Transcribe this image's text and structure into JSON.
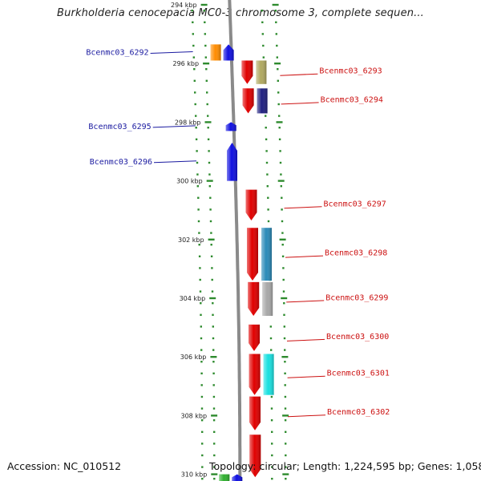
{
  "title": "Burkholderia cenocepacia MC0-3 chromosome 3, complete sequen...",
  "footer": {
    "accession": "Accession: NC_010512",
    "summary": "Topology: circular; Length: 1,224,595 bp; Genes: 1,058"
  },
  "colors": {
    "backbone": "#8a8a8a",
    "tick": "#2e8b2e",
    "dot": "#2e8b2e",
    "minus_label": "#1a1aa0",
    "plus_label": "#cc1111"
  },
  "scale": {
    "ticks": [
      {
        "kbp": 294,
        "label": "294 kbp"
      },
      {
        "kbp": 296,
        "label": "296 kbp"
      },
      {
        "kbp": 298,
        "label": "298 kbp"
      },
      {
        "kbp": 300,
        "label": "300 kbp"
      },
      {
        "kbp": 302,
        "label": "302 kbp"
      },
      {
        "kbp": 304,
        "label": "304 kbp"
      },
      {
        "kbp": 306,
        "label": "306 kbp"
      },
      {
        "kbp": 308,
        "label": "308 kbp"
      },
      {
        "kbp": 310,
        "label": "310 kbp"
      }
    ]
  },
  "genes": [
    {
      "label": "Bcenmc03_6292",
      "strand": "minus",
      "start_kbp": 295.35,
      "end_kbp": 295.9,
      "color": "#1010e0",
      "cog_color": "#ff8c00"
    },
    {
      "label": "Bcenmc03_6293",
      "strand": "plus",
      "start_kbp": 295.9,
      "end_kbp": 296.7,
      "color": "#e00000",
      "cog_color": "#b0a860"
    },
    {
      "label": "Bcenmc03_6294",
      "strand": "plus",
      "start_kbp": 296.85,
      "end_kbp": 297.7,
      "color": "#e00000",
      "cog_color": "#202080"
    },
    {
      "label": "Bcenmc03_6295",
      "strand": "minus",
      "start_kbp": 298.0,
      "end_kbp": 298.3,
      "color": "#1010e0",
      "cog_color": null
    },
    {
      "label": "Bcenmc03_6296",
      "strand": "minus",
      "start_kbp": 298.7,
      "end_kbp": 300.0,
      "color": "#1010e0",
      "cog_color": null
    },
    {
      "label": "Bcenmc03_6297",
      "strand": "plus",
      "start_kbp": 300.3,
      "end_kbp": 301.35,
      "color": "#e00000",
      "cog_color": null
    },
    {
      "label": "Bcenmc03_6298",
      "strand": "plus",
      "start_kbp": 301.6,
      "end_kbp": 303.4,
      "color": "#e00000",
      "cog_color": "#2a8ab8"
    },
    {
      "label": "Bcenmc03_6299",
      "strand": "plus",
      "start_kbp": 303.45,
      "end_kbp": 304.6,
      "color": "#e00000",
      "cog_color": "#a8a8a8"
    },
    {
      "label": "Bcenmc03_6300",
      "strand": "plus",
      "start_kbp": 304.9,
      "end_kbp": 305.8,
      "color": "#e00000",
      "cog_color": null
    },
    {
      "label": "Bcenmc03_6301",
      "strand": "plus",
      "start_kbp": 305.9,
      "end_kbp": 307.3,
      "color": "#e00000",
      "cog_color": "#18e0e0"
    },
    {
      "label": "Bcenmc03_6302",
      "strand": "plus",
      "start_kbp": 307.35,
      "end_kbp": 308.5,
      "color": "#e00000",
      "cog_color": null
    },
    {
      "label": "",
      "strand": "plus",
      "start_kbp": 308.65,
      "end_kbp": 310.1,
      "color": "#e00000",
      "cog_color": null
    },
    {
      "label": "",
      "strand": "minus",
      "start_kbp": 310.0,
      "end_kbp": 310.3,
      "color": "#1010e0",
      "cog_color": "#30b030"
    }
  ]
}
